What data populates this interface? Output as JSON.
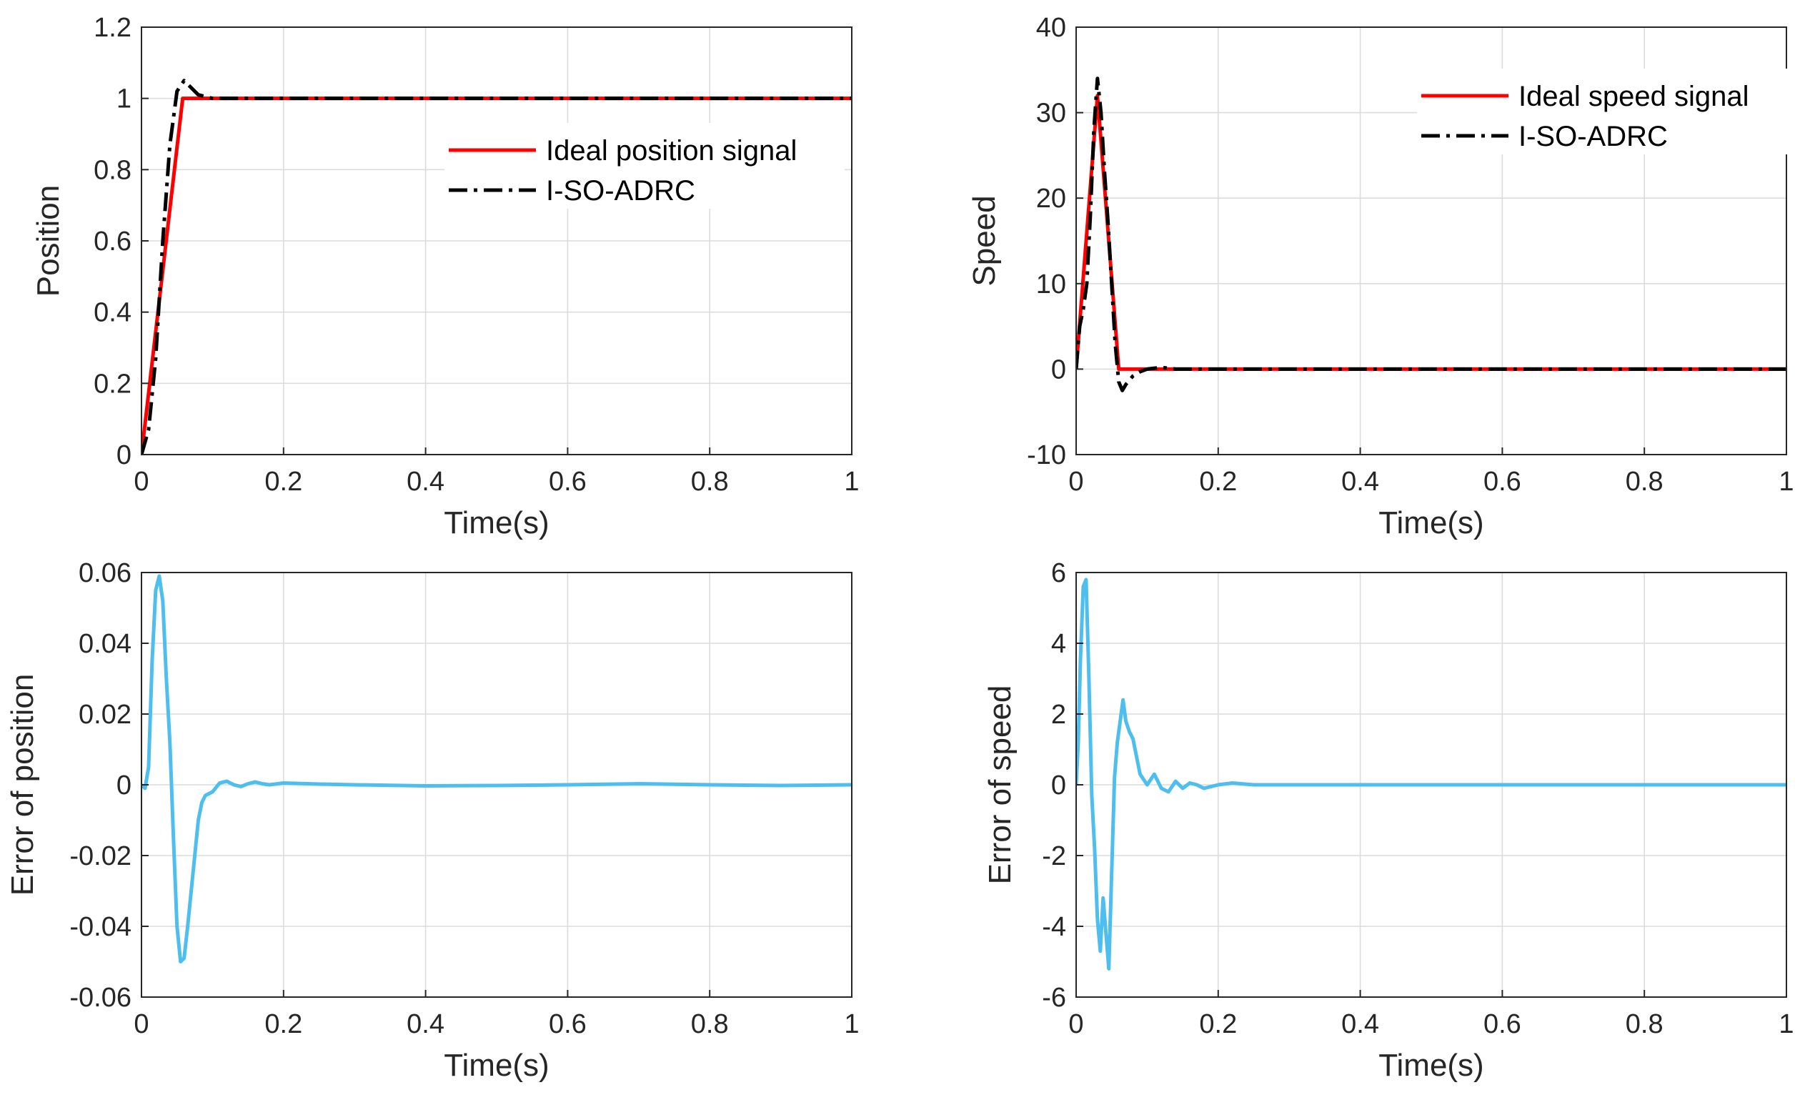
{
  "colors": {
    "ideal": "#ff0000",
    "adrc": "#000000",
    "error": "#4dbeee"
  },
  "chart_data": [
    {
      "id": "position",
      "type": "line",
      "title": "",
      "xlabel": "Time(s)",
      "ylabel": "Position",
      "xlim": [
        0,
        1
      ],
      "ylim": [
        0,
        1.2
      ],
      "xticks": [
        0,
        0.2,
        0.4,
        0.6,
        0.8,
        1
      ],
      "yticks": [
        0,
        0.2,
        0.4,
        0.6,
        0.8,
        1,
        1.2
      ],
      "grid": true,
      "legend_position": "upper-right",
      "series": [
        {
          "name": "Ideal position signal",
          "style": "solid",
          "color": "#ff0000",
          "x": [
            0,
            0.058,
            1
          ],
          "y": [
            0,
            1,
            1
          ]
        },
        {
          "name": "I-SO-ADRC",
          "style": "dashdot",
          "color": "#000000",
          "x": [
            0,
            0.01,
            0.02,
            0.03,
            0.04,
            0.05,
            0.06,
            0.07,
            0.08,
            0.09,
            0.1,
            0.12,
            0.15,
            1
          ],
          "y": [
            0,
            0.07,
            0.27,
            0.6,
            0.87,
            1.02,
            1.05,
            1.03,
            1.01,
            1.005,
            1.0,
            1.0,
            1.0,
            1.0
          ]
        }
      ]
    },
    {
      "id": "speed",
      "type": "line",
      "title": "",
      "xlabel": "Time(s)",
      "ylabel": "Speed",
      "xlim": [
        0,
        1
      ],
      "ylim": [
        -10,
        40
      ],
      "xticks": [
        0,
        0.2,
        0.4,
        0.6,
        0.8,
        1
      ],
      "yticks": [
        -10,
        0,
        10,
        20,
        30,
        40
      ],
      "grid": true,
      "legend_position": "top-right",
      "series": [
        {
          "name": "Ideal speed signal",
          "style": "solid",
          "color": "#ff0000",
          "x": [
            0,
            0.03,
            0.06,
            0.0605,
            1
          ],
          "y": [
            0,
            32,
            0,
            0,
            0
          ]
        },
        {
          "name": "I-SO-ADRC",
          "style": "dashdot",
          "color": "#000000",
          "x": [
            0,
            0.005,
            0.01,
            0.015,
            0.02,
            0.025,
            0.03,
            0.035,
            0.04,
            0.045,
            0.05,
            0.055,
            0.06,
            0.065,
            0.07,
            0.08,
            0.09,
            0.1,
            0.12,
            0.14,
            0.16,
            0.2,
            1
          ],
          "y": [
            0,
            5,
            7,
            10,
            18,
            28,
            34,
            30,
            23,
            17,
            10,
            3,
            -1.5,
            -2.5,
            -1.8,
            -0.8,
            -0.3,
            0,
            0.2,
            0,
            0,
            0,
            0
          ]
        }
      ]
    },
    {
      "id": "error_position",
      "type": "line",
      "title": "",
      "xlabel": "Time(s)",
      "ylabel": "Error of position",
      "xlim": [
        0,
        1
      ],
      "ylim": [
        -0.06,
        0.06
      ],
      "xticks": [
        0,
        0.2,
        0.4,
        0.6,
        0.8,
        1
      ],
      "yticks": [
        -0.06,
        -0.04,
        -0.02,
        0,
        0.02,
        0.04,
        0.06
      ],
      "grid": true,
      "series": [
        {
          "name": "Error of position",
          "style": "solid",
          "color": "#4dbeee",
          "x": [
            0,
            0.005,
            0.01,
            0.015,
            0.02,
            0.025,
            0.03,
            0.035,
            0.04,
            0.045,
            0.05,
            0.055,
            0.06,
            0.065,
            0.07,
            0.075,
            0.08,
            0.085,
            0.09,
            0.1,
            0.11,
            0.12,
            0.13,
            0.14,
            0.15,
            0.16,
            0.17,
            0.18,
            0.2,
            0.25,
            0.3,
            0.4,
            0.5,
            0.6,
            0.7,
            0.8,
            0.9,
            1
          ],
          "y": [
            0,
            -0.001,
            0.005,
            0.035,
            0.055,
            0.059,
            0.052,
            0.03,
            0.012,
            -0.015,
            -0.04,
            -0.05,
            -0.049,
            -0.04,
            -0.03,
            -0.02,
            -0.01,
            -0.005,
            -0.003,
            -0.002,
            0.0005,
            0.001,
            0,
            -0.0005,
            0.0003,
            0.0008,
            0.0003,
            0,
            0.0005,
            0.0002,
            0,
            -0.0003,
            -0.0002,
            0,
            0.0003,
            0,
            -0.0002,
            0
          ]
        }
      ]
    },
    {
      "id": "error_speed",
      "type": "line",
      "title": "",
      "xlabel": "Time(s)",
      "ylabel": "Error of speed",
      "xlim": [
        0,
        1
      ],
      "ylim": [
        -6,
        6
      ],
      "xticks": [
        0,
        0.2,
        0.4,
        0.6,
        0.8,
        1
      ],
      "yticks": [
        -6,
        -4,
        -2,
        0,
        2,
        4,
        6
      ],
      "grid": true,
      "series": [
        {
          "name": "Error of speed",
          "style": "solid",
          "color": "#4dbeee",
          "x": [
            0,
            0.003,
            0.006,
            0.01,
            0.014,
            0.018,
            0.022,
            0.026,
            0.03,
            0.034,
            0.038,
            0.042,
            0.046,
            0.05,
            0.054,
            0.058,
            0.062,
            0.066,
            0.07,
            0.075,
            0.08,
            0.09,
            0.1,
            0.11,
            0.12,
            0.13,
            0.14,
            0.15,
            0.16,
            0.17,
            0.18,
            0.2,
            0.22,
            0.25,
            0.3,
            1
          ],
          "y": [
            0,
            1.2,
            3.5,
            5.6,
            5.8,
            3.0,
            -0.3,
            -1.8,
            -3.8,
            -4.7,
            -3.2,
            -4.2,
            -5.2,
            -2.5,
            0.2,
            1.2,
            1.8,
            2.4,
            1.8,
            1.5,
            1.3,
            0.3,
            0,
            0.3,
            -0.1,
            -0.2,
            0.1,
            -0.1,
            0.05,
            0,
            -0.1,
            0,
            0.05,
            0,
            0,
            0
          ]
        }
      ]
    }
  ]
}
